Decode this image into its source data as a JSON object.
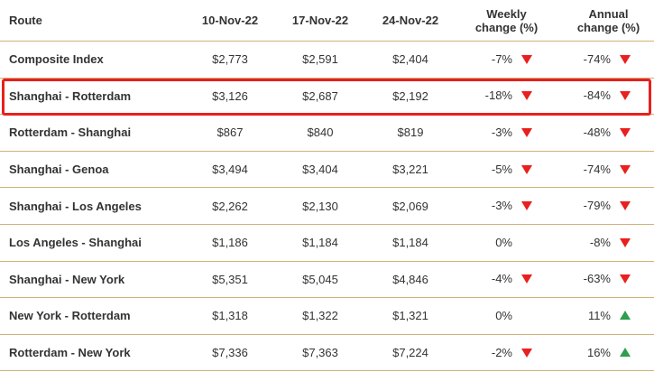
{
  "table": {
    "header": [
      "Route",
      "10-Nov-22",
      "17-Nov-22",
      "24-Nov-22",
      "Weekly change (%)",
      "Annual change (%)"
    ],
    "rows": [
      [
        "Composite Index",
        "$2,773",
        "$2,591",
        "$2,404",
        "-7%",
        "-74%"
      ],
      [
        "Shanghai - Rotterdam",
        "$3,126",
        "$2,687",
        "$2,192",
        "-18%",
        "-84%"
      ],
      [
        "Rotterdam - Shanghai",
        "$867",
        "$840",
        "$819",
        "-3%",
        "-48%"
      ],
      [
        "Shanghai - Genoa",
        "$3,494",
        "$3,404",
        "$3,221",
        "-5%",
        "-74%"
      ],
      [
        "Shanghai - Los Angeles",
        "$2,262",
        "$2,130",
        "$2,069",
        "-3%",
        "-79%"
      ],
      [
        "Los Angeles - Shanghai",
        "$1,186",
        "$1,184",
        "$1,184",
        "0%",
        "-8%"
      ],
      [
        "Shanghai - New York",
        "$5,351",
        "$5,045",
        "$4,846",
        "-4%",
        "-63%"
      ],
      [
        "New York - Rotterdam",
        "$1,318",
        "$1,322",
        "$1,321",
        "0%",
        "11%"
      ],
      [
        "Rotterdam - New York",
        "$7,336",
        "$7,363",
        "$7,224",
        "-2%",
        "16%"
      ]
    ],
    "highlighted_row": 1
  }
}
